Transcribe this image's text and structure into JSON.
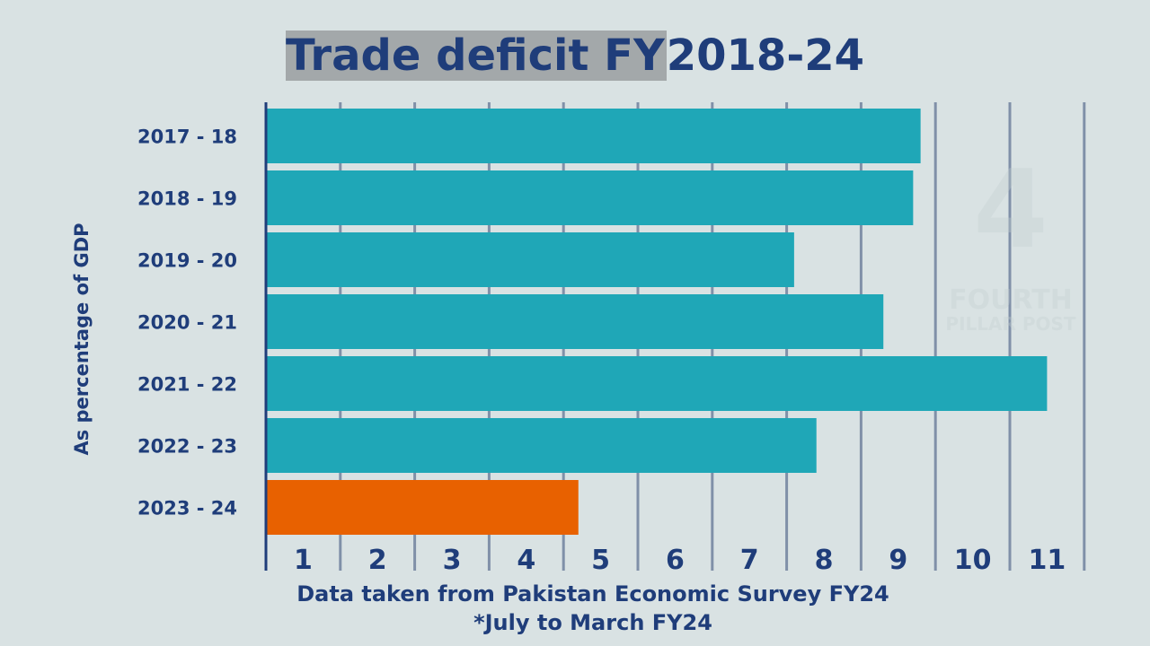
{
  "title": {
    "highlighted": "Trade deficit FY",
    "rest": "2018-24"
  },
  "footer": {
    "line1": "Data taken from Pakistan Economic Survey FY24",
    "line2": "*July to March FY24"
  },
  "watermark": {
    "line1": "FOURTH",
    "line2": "PILLAR POST",
    "logo": "4"
  },
  "colors": {
    "bar": "#1fa7b7",
    "highlight_bar": "#e86100",
    "text": "#1f3d7a",
    "grid": "#8090a8"
  },
  "chart_data": {
    "type": "bar",
    "orientation": "horizontal",
    "ylabel": "As percentage of GDP",
    "categories": [
      "2017 - 18",
      "2018 - 19",
      "2019 - 20",
      "2020 - 21",
      "2021 - 22",
      "2022 - 23",
      "2023 - 24"
    ],
    "values": [
      8.8,
      8.7,
      7.1,
      8.3,
      10.5,
      7.4,
      4.2
    ],
    "highlight_index": 6,
    "xlim": [
      0,
      11
    ],
    "xticks": [
      "1",
      "2",
      "3",
      "4",
      "5",
      "6",
      "7",
      "8",
      "9",
      "10",
      "11"
    ],
    "grid": true
  }
}
